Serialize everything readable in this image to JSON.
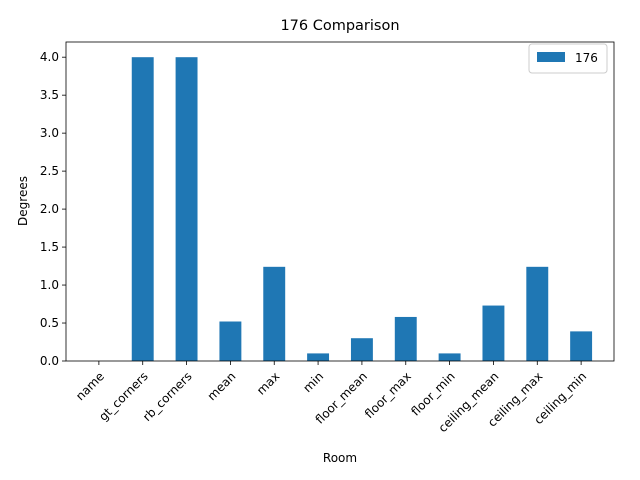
{
  "chart_data": {
    "type": "bar",
    "title": "176 Comparison",
    "xlabel": "Room",
    "ylabel": "Degrees",
    "categories": [
      "name",
      "gt_corners",
      "rb_corners",
      "mean",
      "max",
      "min",
      "floor_mean",
      "floor_max",
      "floor_min",
      "ceiling_mean",
      "ceiling_max",
      "ceiling_min"
    ],
    "series": [
      {
        "name": "176",
        "color": "#1f77b4",
        "values": [
          0,
          4.0,
          4.0,
          0.52,
          1.24,
          0.1,
          0.3,
          0.58,
          0.1,
          0.73,
          1.24,
          0.39
        ]
      }
    ],
    "ylim": [
      0,
      4.2
    ],
    "yticks": [
      "0.0",
      "0.5",
      "1.0",
      "1.5",
      "2.0",
      "2.5",
      "3.0",
      "3.5",
      "4.0"
    ],
    "grid": false,
    "legend_position": "top-right"
  }
}
